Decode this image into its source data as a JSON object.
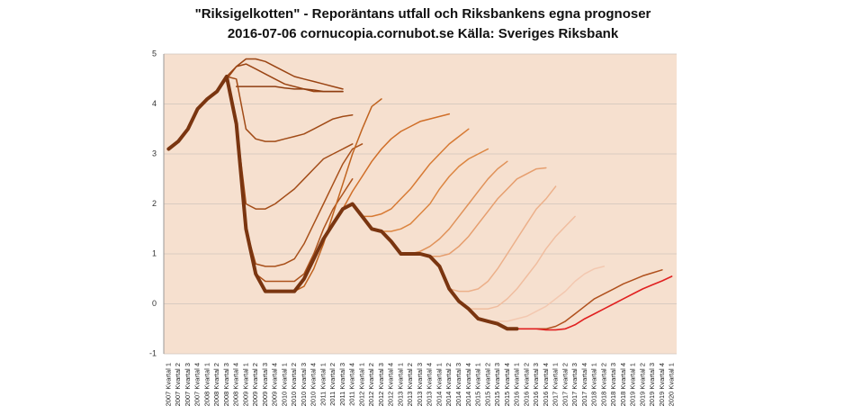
{
  "chart_data": {
    "type": "line",
    "title": "\"Riksigelkotten\" - Reporäntans utfall och Riksbankens egna prognoser",
    "subtitle": "2016-07-06 cornucopia.cornubot.se Källa: Sveriges Riksbank",
    "categories": [
      "2007 Kvartal 1",
      "2007 Kvartal 2",
      "2007 Kvartal 3",
      "2007 Kvartal 4",
      "2008 Kvartal 1",
      "2008 Kvartal 2",
      "2008 Kvartal 3",
      "2008 Kvartal 4",
      "2009 Kvartal 1",
      "2009 Kvartal 2",
      "2009 Kvartal 3",
      "2009 Kvartal 4",
      "2010 Kvartal 1",
      "2010 Kvartal 2",
      "2010 Kvartal 3",
      "2010 Kvartal 4",
      "2011 Kvartal 1",
      "2011 Kvartal 2",
      "2011 Kvartal 3",
      "2011 Kvartal 4",
      "2012 Kvartal 1",
      "2012 Kvartal 2",
      "2012 Kvartal 3",
      "2012 Kvartal 4",
      "2013 Kvartal 1",
      "2013 Kvartal 2",
      "2013 Kvartal 3",
      "2013 Kvartal 4",
      "2014 Kvartal 1",
      "2014 Kvartal 2",
      "2014 Kvartal 3",
      "2014 Kvartal 4",
      "2015 Kvartal 1",
      "2015 Kvartal 2",
      "2015 Kvartal 3",
      "2015 Kvartal 4",
      "2016 Kvartal 1",
      "2016 Kvartal 2",
      "2016 Kvartal 3",
      "2016 Kvartal 4",
      "2017 Kvartal 1",
      "2017 Kvartal 2",
      "2017 Kvartal 3",
      "2017 Kvartal 4",
      "2018 Kvartal 1",
      "2018 Kvartal 2",
      "2018 Kvartal 3",
      "2018 Kvartal 4",
      "2019 Kvartal 1",
      "2019 Kvartal 2",
      "2019 Kvartal 3",
      "2019 Kvartal 4",
      "2020 Kvartal 1"
    ],
    "ylim": [
      -1,
      5
    ],
    "yticks": [
      -1,
      0,
      1,
      2,
      3,
      4,
      5
    ],
    "grid": true,
    "background": "#f6e0cf",
    "series": [
      {
        "color": "#9a4413",
        "width": 1.5,
        "values": [
          null,
          null,
          null,
          null,
          null,
          4.25,
          4.5,
          4.75,
          4.9,
          4.9,
          4.85,
          4.75,
          4.65,
          4.55,
          4.5,
          4.45,
          4.4,
          4.35,
          4.3,
          null,
          null,
          null,
          null,
          null,
          null,
          null,
          null,
          null,
          null,
          null,
          null,
          null,
          null,
          null,
          null,
          null,
          null,
          null,
          null,
          null,
          null,
          null,
          null,
          null,
          null,
          null,
          null,
          null,
          null,
          null,
          null,
          null,
          null
        ]
      },
      {
        "color": "#9a4413",
        "width": 1.5,
        "values": [
          null,
          null,
          null,
          null,
          null,
          null,
          4.55,
          4.75,
          4.8,
          4.7,
          4.6,
          4.5,
          4.4,
          4.35,
          4.3,
          4.25,
          4.25,
          4.25,
          4.25,
          null,
          null,
          null,
          null,
          null,
          null,
          null,
          null,
          null,
          null,
          null,
          null,
          null,
          null,
          null,
          null,
          null,
          null,
          null,
          null,
          null,
          null,
          null,
          null,
          null,
          null,
          null,
          null,
          null,
          null,
          null,
          null,
          null,
          null
        ]
      },
      {
        "color": "#8e3d10",
        "width": 1.5,
        "values": [
          null,
          null,
          null,
          null,
          null,
          null,
          null,
          4.35,
          4.35,
          4.35,
          4.35,
          4.35,
          4.32,
          4.3,
          4.3,
          4.28,
          4.25,
          4.25,
          4.25,
          null,
          null,
          null,
          null,
          null,
          null,
          null,
          null,
          null,
          null,
          null,
          null,
          null,
          null,
          null,
          null,
          null,
          null,
          null,
          null,
          null,
          null,
          null,
          null,
          null,
          null,
          null,
          null,
          null,
          null,
          null,
          null,
          null,
          null
        ]
      },
      {
        "color": "#a14b17",
        "width": 1.5,
        "values": [
          null,
          null,
          null,
          null,
          null,
          null,
          4.55,
          4.5,
          3.5,
          3.3,
          3.25,
          3.25,
          3.3,
          3.35,
          3.4,
          3.5,
          3.6,
          3.7,
          3.75,
          3.78,
          null,
          null,
          null,
          null,
          null,
          null,
          null,
          null,
          null,
          null,
          null,
          null,
          null,
          null,
          null,
          null,
          null,
          null,
          null,
          null,
          null,
          null,
          null,
          null,
          null,
          null,
          null,
          null,
          null,
          null,
          null,
          null,
          null
        ]
      },
      {
        "color": "#a34c18",
        "width": 1.5,
        "values": [
          null,
          null,
          null,
          null,
          null,
          null,
          null,
          3.6,
          2.0,
          1.9,
          1.9,
          2.0,
          2.15,
          2.3,
          2.5,
          2.7,
          2.9,
          3.0,
          3.1,
          3.2,
          null,
          null,
          null,
          null,
          null,
          null,
          null,
          null,
          null,
          null,
          null,
          null,
          null,
          null,
          null,
          null,
          null,
          null,
          null,
          null,
          null,
          null,
          null,
          null,
          null,
          null,
          null,
          null,
          null,
          null,
          null,
          null,
          null
        ]
      },
      {
        "color": "#a8501a",
        "width": 1.5,
        "values": [
          null,
          null,
          null,
          null,
          null,
          null,
          null,
          null,
          1.5,
          0.8,
          0.75,
          0.75,
          0.8,
          0.9,
          1.2,
          1.6,
          2.0,
          2.4,
          2.8,
          3.1,
          3.2,
          null,
          null,
          null,
          null,
          null,
          null,
          null,
          null,
          null,
          null,
          null,
          null,
          null,
          null,
          null,
          null,
          null,
          null,
          null,
          null,
          null,
          null,
          null,
          null,
          null,
          null,
          null,
          null,
          null,
          null,
          null,
          null
        ]
      },
      {
        "color": "#ad531c",
        "width": 1.5,
        "values": [
          null,
          null,
          null,
          null,
          null,
          null,
          null,
          null,
          null,
          0.6,
          0.45,
          0.45,
          0.45,
          0.45,
          0.6,
          1.0,
          1.5,
          1.9,
          2.2,
          2.5,
          null,
          null,
          null,
          null,
          null,
          null,
          null,
          null,
          null,
          null,
          null,
          null,
          null,
          null,
          null,
          null,
          null,
          null,
          null,
          null,
          null,
          null,
          null,
          null,
          null,
          null,
          null,
          null,
          null,
          null,
          null,
          null,
          null
        ]
      },
      {
        "color": "#c0631f",
        "width": 1.5,
        "values": [
          null,
          null,
          null,
          null,
          null,
          null,
          null,
          null,
          null,
          null,
          null,
          null,
          null,
          0.25,
          0.35,
          0.7,
          1.2,
          1.8,
          2.4,
          3.0,
          3.5,
          3.95,
          4.1,
          null,
          null,
          null,
          null,
          null,
          null,
          null,
          null,
          null,
          null,
          null,
          null,
          null,
          null,
          null,
          null,
          null,
          null,
          null,
          null,
          null,
          null,
          null,
          null,
          null,
          null,
          null,
          null,
          null,
          null
        ]
      },
      {
        "color": "#d06e28",
        "width": 1.5,
        "values": [
          null,
          null,
          null,
          null,
          null,
          null,
          null,
          null,
          null,
          null,
          null,
          null,
          null,
          null,
          null,
          null,
          null,
          null,
          1.9,
          2.25,
          2.55,
          2.85,
          3.1,
          3.3,
          3.45,
          3.55,
          3.65,
          3.7,
          3.75,
          3.8,
          null,
          null,
          null,
          null,
          null,
          null,
          null,
          null,
          null,
          null,
          null,
          null,
          null,
          null,
          null,
          null,
          null,
          null,
          null,
          null,
          null,
          null,
          null
        ]
      },
      {
        "color": "#d77a34",
        "width": 1.5,
        "values": [
          null,
          null,
          null,
          null,
          null,
          null,
          null,
          null,
          null,
          null,
          null,
          null,
          null,
          null,
          null,
          null,
          null,
          null,
          null,
          null,
          1.75,
          1.75,
          1.8,
          1.9,
          2.1,
          2.3,
          2.55,
          2.8,
          3.0,
          3.2,
          3.35,
          3.5,
          null,
          null,
          null,
          null,
          null,
          null,
          null,
          null,
          null,
          null,
          null,
          null,
          null,
          null,
          null,
          null,
          null,
          null,
          null,
          null,
          null
        ]
      },
      {
        "color": "#dc8540",
        "width": 1.5,
        "values": [
          null,
          null,
          null,
          null,
          null,
          null,
          null,
          null,
          null,
          null,
          null,
          null,
          null,
          null,
          null,
          null,
          null,
          null,
          null,
          null,
          null,
          null,
          1.45,
          1.45,
          1.5,
          1.6,
          1.8,
          2.0,
          2.3,
          2.55,
          2.75,
          2.9,
          3.0,
          3.1,
          null,
          null,
          null,
          null,
          null,
          null,
          null,
          null,
          null,
          null,
          null,
          null,
          null,
          null,
          null,
          null,
          null,
          null,
          null
        ]
      },
      {
        "color": "#e0925a",
        "width": 1.5,
        "values": [
          null,
          null,
          null,
          null,
          null,
          null,
          null,
          null,
          null,
          null,
          null,
          null,
          null,
          null,
          null,
          null,
          null,
          null,
          null,
          null,
          null,
          null,
          null,
          null,
          1.0,
          1.0,
          1.05,
          1.15,
          1.3,
          1.5,
          1.75,
          2.0,
          2.25,
          2.5,
          2.7,
          2.85,
          null,
          null,
          null,
          null,
          null,
          null,
          null,
          null,
          null,
          null,
          null,
          null,
          null,
          null,
          null,
          null,
          null
        ]
      },
      {
        "color": "#e69e6e",
        "width": 1.5,
        "values": [
          null,
          null,
          null,
          null,
          null,
          null,
          null,
          null,
          null,
          null,
          null,
          null,
          null,
          null,
          null,
          null,
          null,
          null,
          null,
          null,
          null,
          null,
          null,
          null,
          null,
          null,
          null,
          0.95,
          0.95,
          1.0,
          1.15,
          1.35,
          1.6,
          1.85,
          2.1,
          2.3,
          2.5,
          2.6,
          2.7,
          2.72,
          null,
          null,
          null,
          null,
          null,
          null,
          null,
          null,
          null,
          null,
          null,
          null,
          null
        ]
      },
      {
        "color": "#ecb08a",
        "width": 1.5,
        "values": [
          null,
          null,
          null,
          null,
          null,
          null,
          null,
          null,
          null,
          null,
          null,
          null,
          null,
          null,
          null,
          null,
          null,
          null,
          null,
          null,
          null,
          null,
          null,
          null,
          null,
          null,
          null,
          null,
          null,
          0.3,
          0.25,
          0.25,
          0.3,
          0.45,
          0.7,
          1.0,
          1.3,
          1.6,
          1.9,
          2.1,
          2.35,
          null,
          null,
          null,
          null,
          null,
          null,
          null,
          null,
          null,
          null,
          null,
          null
        ]
      },
      {
        "color": "#f0bd9f",
        "width": 1.5,
        "values": [
          null,
          null,
          null,
          null,
          null,
          null,
          null,
          null,
          null,
          null,
          null,
          null,
          null,
          null,
          null,
          null,
          null,
          null,
          null,
          null,
          null,
          null,
          null,
          null,
          null,
          null,
          null,
          null,
          null,
          null,
          null,
          -0.1,
          -0.1,
          -0.1,
          -0.05,
          0.1,
          0.3,
          0.55,
          0.8,
          1.1,
          1.35,
          1.55,
          1.75,
          null,
          null,
          null,
          null,
          null,
          null,
          null,
          null,
          null,
          null
        ]
      },
      {
        "color": "#f3c8b0",
        "width": 1.5,
        "values": [
          null,
          null,
          null,
          null,
          null,
          null,
          null,
          null,
          null,
          null,
          null,
          null,
          null,
          null,
          null,
          null,
          null,
          null,
          null,
          null,
          null,
          null,
          null,
          null,
          null,
          null,
          null,
          null,
          null,
          null,
          null,
          null,
          null,
          -0.35,
          -0.35,
          -0.35,
          -0.3,
          -0.25,
          -0.15,
          -0.05,
          0.1,
          0.25,
          0.45,
          0.6,
          0.7,
          0.75,
          null,
          null,
          null,
          null,
          null,
          null,
          null
        ]
      },
      {
        "color": "#b0501d",
        "width": 1.5,
        "values": [
          null,
          null,
          null,
          null,
          null,
          null,
          null,
          null,
          null,
          null,
          null,
          null,
          null,
          null,
          null,
          null,
          null,
          null,
          null,
          null,
          null,
          null,
          null,
          null,
          null,
          null,
          null,
          null,
          null,
          null,
          null,
          null,
          null,
          null,
          null,
          null,
          -0.5,
          -0.5,
          -0.5,
          -0.5,
          -0.45,
          -0.35,
          -0.2,
          -0.05,
          0.1,
          0.2,
          0.3,
          0.4,
          0.48,
          0.56,
          0.62,
          0.68,
          null
        ]
      },
      {
        "color": "#e02020",
        "width": 1.6,
        "values": [
          null,
          null,
          null,
          null,
          null,
          null,
          null,
          null,
          null,
          null,
          null,
          null,
          null,
          null,
          null,
          null,
          null,
          null,
          null,
          null,
          null,
          null,
          null,
          null,
          null,
          null,
          null,
          null,
          null,
          null,
          null,
          null,
          null,
          null,
          null,
          null,
          -0.5,
          -0.5,
          -0.5,
          -0.52,
          -0.52,
          -0.5,
          -0.42,
          -0.3,
          -0.2,
          -0.1,
          0,
          0.1,
          0.2,
          0.3,
          0.38,
          0.46,
          0.55
        ]
      },
      {
        "color": "#7a3510",
        "width": 4,
        "values": [
          3.1,
          3.25,
          3.5,
          3.9,
          4.1,
          4.25,
          4.55,
          3.6,
          1.5,
          0.6,
          0.25,
          0.25,
          0.25,
          0.25,
          0.5,
          0.9,
          1.3,
          1.6,
          1.9,
          2.0,
          1.75,
          1.5,
          1.45,
          1.25,
          1.0,
          1.0,
          1.0,
          0.95,
          0.75,
          0.3,
          0.05,
          -0.1,
          -0.3,
          -0.35,
          -0.4,
          -0.5,
          -0.5,
          null,
          null,
          null,
          null,
          null,
          null,
          null,
          null,
          null,
          null,
          null,
          null,
          null,
          null,
          null,
          null
        ]
      }
    ]
  }
}
